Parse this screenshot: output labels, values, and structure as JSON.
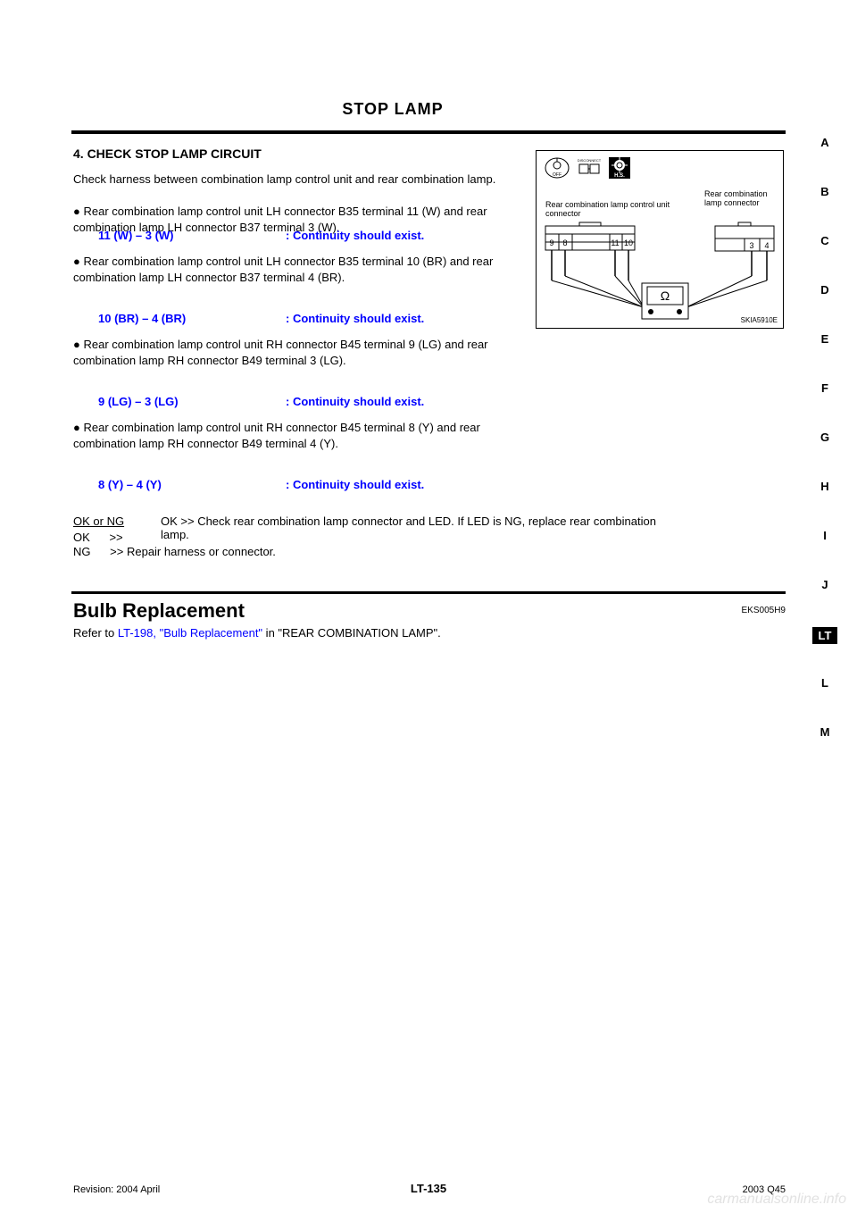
{
  "page_title": "STOP LAMP",
  "check_heading": "4. CHECK STOP LAMP CIRCUIT",
  "instructions": {
    "line1": "Check harness between combination lamp control unit and rear combination lamp.",
    "line2_part1": "Rear combination lamp control unit LH connector B35 terminal 11 (W) and rear combination lamp LH connector B37 terminal 3 (W).",
    "pair1_left": "11 (W) – 3 (W)",
    "pair1_right": ": Continuity should exist.",
    "line3": "Rear combination lamp control unit LH connector B35 terminal 10 (BR) and rear combination lamp LH connector B37 terminal 4 (BR).",
    "pair2_left": "10 (BR) – 4 (BR)",
    "pair2_right": ": Continuity should exist.",
    "line4": "Rear combination lamp control unit RH connector B45 terminal 9 (LG) and rear combination lamp RH connector B49 terminal 3 (LG).",
    "pair3_left": "9 (LG) – 3 (LG)",
    "pair3_right": ": Continuity should exist.",
    "line5": "Rear combination lamp control unit RH connector B45 terminal 8 (Y) and rear combination lamp RH connector B49 terminal 4 (Y).",
    "pair4_left": "8 (Y) – 4 (Y)",
    "pair4_right": ": Continuity should exist."
  },
  "results": {
    "ok_label": "OK or NG",
    "ok_line": "OK >> Check rear combination lamp connector and LED. If LED is NG, replace rear combination lamp.",
    "ng_label_prefix": "NG >>",
    "ng_line": "Repair harness or connector."
  },
  "bulb": {
    "heading": "Bulb Replacement",
    "code": "EKS005H9",
    "instr": "Refer to LT-198, \"Bulb Replacement\" in \"REAR COMBINATION LAMP\"."
  },
  "diagram": {
    "label1": "Rear combination lamp control unit connector",
    "label2": "Rear combination lamp connector",
    "pins_left": [
      "9",
      "8",
      "11",
      "10"
    ],
    "pins_right": [
      "3",
      "4"
    ],
    "ref": "SKIA5910E"
  },
  "tabs": [
    "A",
    "B",
    "C",
    "D",
    "E",
    "F",
    "G",
    "H",
    "I",
    "J",
    "LT",
    "L",
    "M"
  ],
  "active_tab": "LT",
  "footer": {
    "page": "LT-135",
    "revision": "Revision: 2004 April",
    "model": "2003 Q45",
    "watermark": "carmanualsonline.info"
  },
  "colors": {
    "link": "#0000ff",
    "text": "#000000",
    "bg": "#ffffff"
  }
}
